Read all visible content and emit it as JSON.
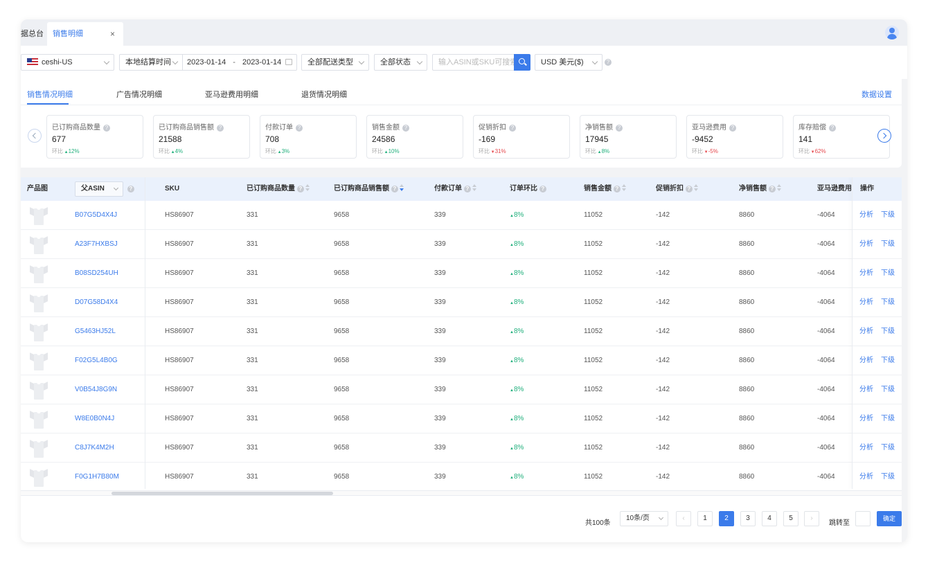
{
  "tabs": {
    "dashboard_label": "据总台",
    "active_label": "销售明细",
    "close_glyph": "×"
  },
  "filters": {
    "store": "ceshi-US",
    "time_type": "本地结算时间",
    "date_start": "2023-01-14",
    "date_sep": "-",
    "date_end": "2023-01-14",
    "delivery_type": "全部配送类型",
    "status": "全部状态",
    "search_placeholder": "输入ASIN或SKU可搜索",
    "currency": "USD  美元($)"
  },
  "subtabs": {
    "items": [
      "销售情况明细",
      "广告情况明细",
      "亚马逊费用明细",
      "退货情况明细"
    ],
    "active_index": 0,
    "settings_label": "数据设置"
  },
  "metrics": [
    {
      "label": "已订购商品数量",
      "value": "677",
      "compare_label": "环比",
      "change": "12%",
      "direction": "up"
    },
    {
      "label": "已订购商品销售额",
      "value": "21588",
      "compare_label": "环比",
      "change": "4%",
      "direction": "up"
    },
    {
      "label": "付款订单",
      "value": "708",
      "compare_label": "环比",
      "change": "3%",
      "direction": "up"
    },
    {
      "label": "销售金额",
      "value": "24586",
      "compare_label": "环比",
      "change": "10%",
      "direction": "up"
    },
    {
      "label": "促销折扣",
      "value": "-169",
      "compare_label": "环比",
      "change": "31%",
      "direction": "down"
    },
    {
      "label": "净销售额",
      "value": "17945",
      "compare_label": "环比",
      "change": "8%",
      "direction": "up"
    },
    {
      "label": "亚马逊费用",
      "value": "-9452",
      "compare_label": "环比",
      "change": "-5%",
      "direction": "down"
    },
    {
      "label": "库存赔偿",
      "value": "141",
      "compare_label": "环比",
      "change": "62%",
      "direction": "down"
    }
  ],
  "table": {
    "headers": {
      "image": "产品图",
      "asin": "父ASIN",
      "sku": "SKU",
      "qty": "已订购商品数量",
      "sales": "已订购商品销售额",
      "orders": "付款订单",
      "order_ratio": "订单环比",
      "amount": "销售金额",
      "discount": "促销折扣",
      "net": "净销售额",
      "fee": "亚马逊费用",
      "ops": "操作"
    },
    "rows": [
      {
        "asin": "B07G5D4X4J",
        "sku": "HS86907",
        "qty": "331",
        "sales": "9658",
        "orders": "339",
        "ratio": "8%",
        "amount": "11052",
        "discount": "-142",
        "net": "8860",
        "fee": "-4064"
      },
      {
        "asin": "A23F7HXBSJ",
        "sku": "HS86907",
        "qty": "331",
        "sales": "9658",
        "orders": "339",
        "ratio": "8%",
        "amount": "11052",
        "discount": "-142",
        "net": "8860",
        "fee": "-4064"
      },
      {
        "asin": "B08SD254UH",
        "sku": "HS86907",
        "qty": "331",
        "sales": "9658",
        "orders": "339",
        "ratio": "8%",
        "amount": "11052",
        "discount": "-142",
        "net": "8860",
        "fee": "-4064"
      },
      {
        "asin": "D07G58D4X4",
        "sku": "HS86907",
        "qty": "331",
        "sales": "9658",
        "orders": "339",
        "ratio": "8%",
        "amount": "11052",
        "discount": "-142",
        "net": "8860",
        "fee": "-4064"
      },
      {
        "asin": "G5463HJ52L",
        "sku": "HS86907",
        "qty": "331",
        "sales": "9658",
        "orders": "339",
        "ratio": "8%",
        "amount": "11052",
        "discount": "-142",
        "net": "8860",
        "fee": "-4064"
      },
      {
        "asin": "F02G5L4B0G",
        "sku": "HS86907",
        "qty": "331",
        "sales": "9658",
        "orders": "339",
        "ratio": "8%",
        "amount": "11052",
        "discount": "-142",
        "net": "8860",
        "fee": "-4064"
      },
      {
        "asin": "V0B54J8G9N",
        "sku": "HS86907",
        "qty": "331",
        "sales": "9658",
        "orders": "339",
        "ratio": "8%",
        "amount": "11052",
        "discount": "-142",
        "net": "8860",
        "fee": "-4064"
      },
      {
        "asin": "W8E0B0N4J",
        "sku": "HS86907",
        "qty": "331",
        "sales": "9658",
        "orders": "339",
        "ratio": "8%",
        "amount": "11052",
        "discount": "-142",
        "net": "8860",
        "fee": "-4064"
      },
      {
        "asin": "C8J7K4M2H",
        "sku": "HS86907",
        "qty": "331",
        "sales": "9658",
        "orders": "339",
        "ratio": "8%",
        "amount": "11052",
        "discount": "-142",
        "net": "8860",
        "fee": "-4064"
      },
      {
        "asin": "F0G1H7B80M",
        "sku": "HS86907",
        "qty": "331",
        "sales": "9658",
        "orders": "339",
        "ratio": "8%",
        "amount": "11052",
        "discount": "-142",
        "net": "8860",
        "fee": "-4064"
      }
    ],
    "op_analyze": "分析",
    "op_drill": "下级"
  },
  "pagination": {
    "total": "共100条",
    "page_size": "10条/页",
    "pages": [
      "1",
      "2",
      "3",
      "4",
      "5"
    ],
    "current_page": "2",
    "jump_label": "跳转至",
    "confirm_label": "确定",
    "prev_glyph": "‹",
    "next_glyph": "›"
  },
  "colors": {
    "accent": "#3b7bea",
    "up": "#22b07d",
    "down": "#e5484d"
  }
}
